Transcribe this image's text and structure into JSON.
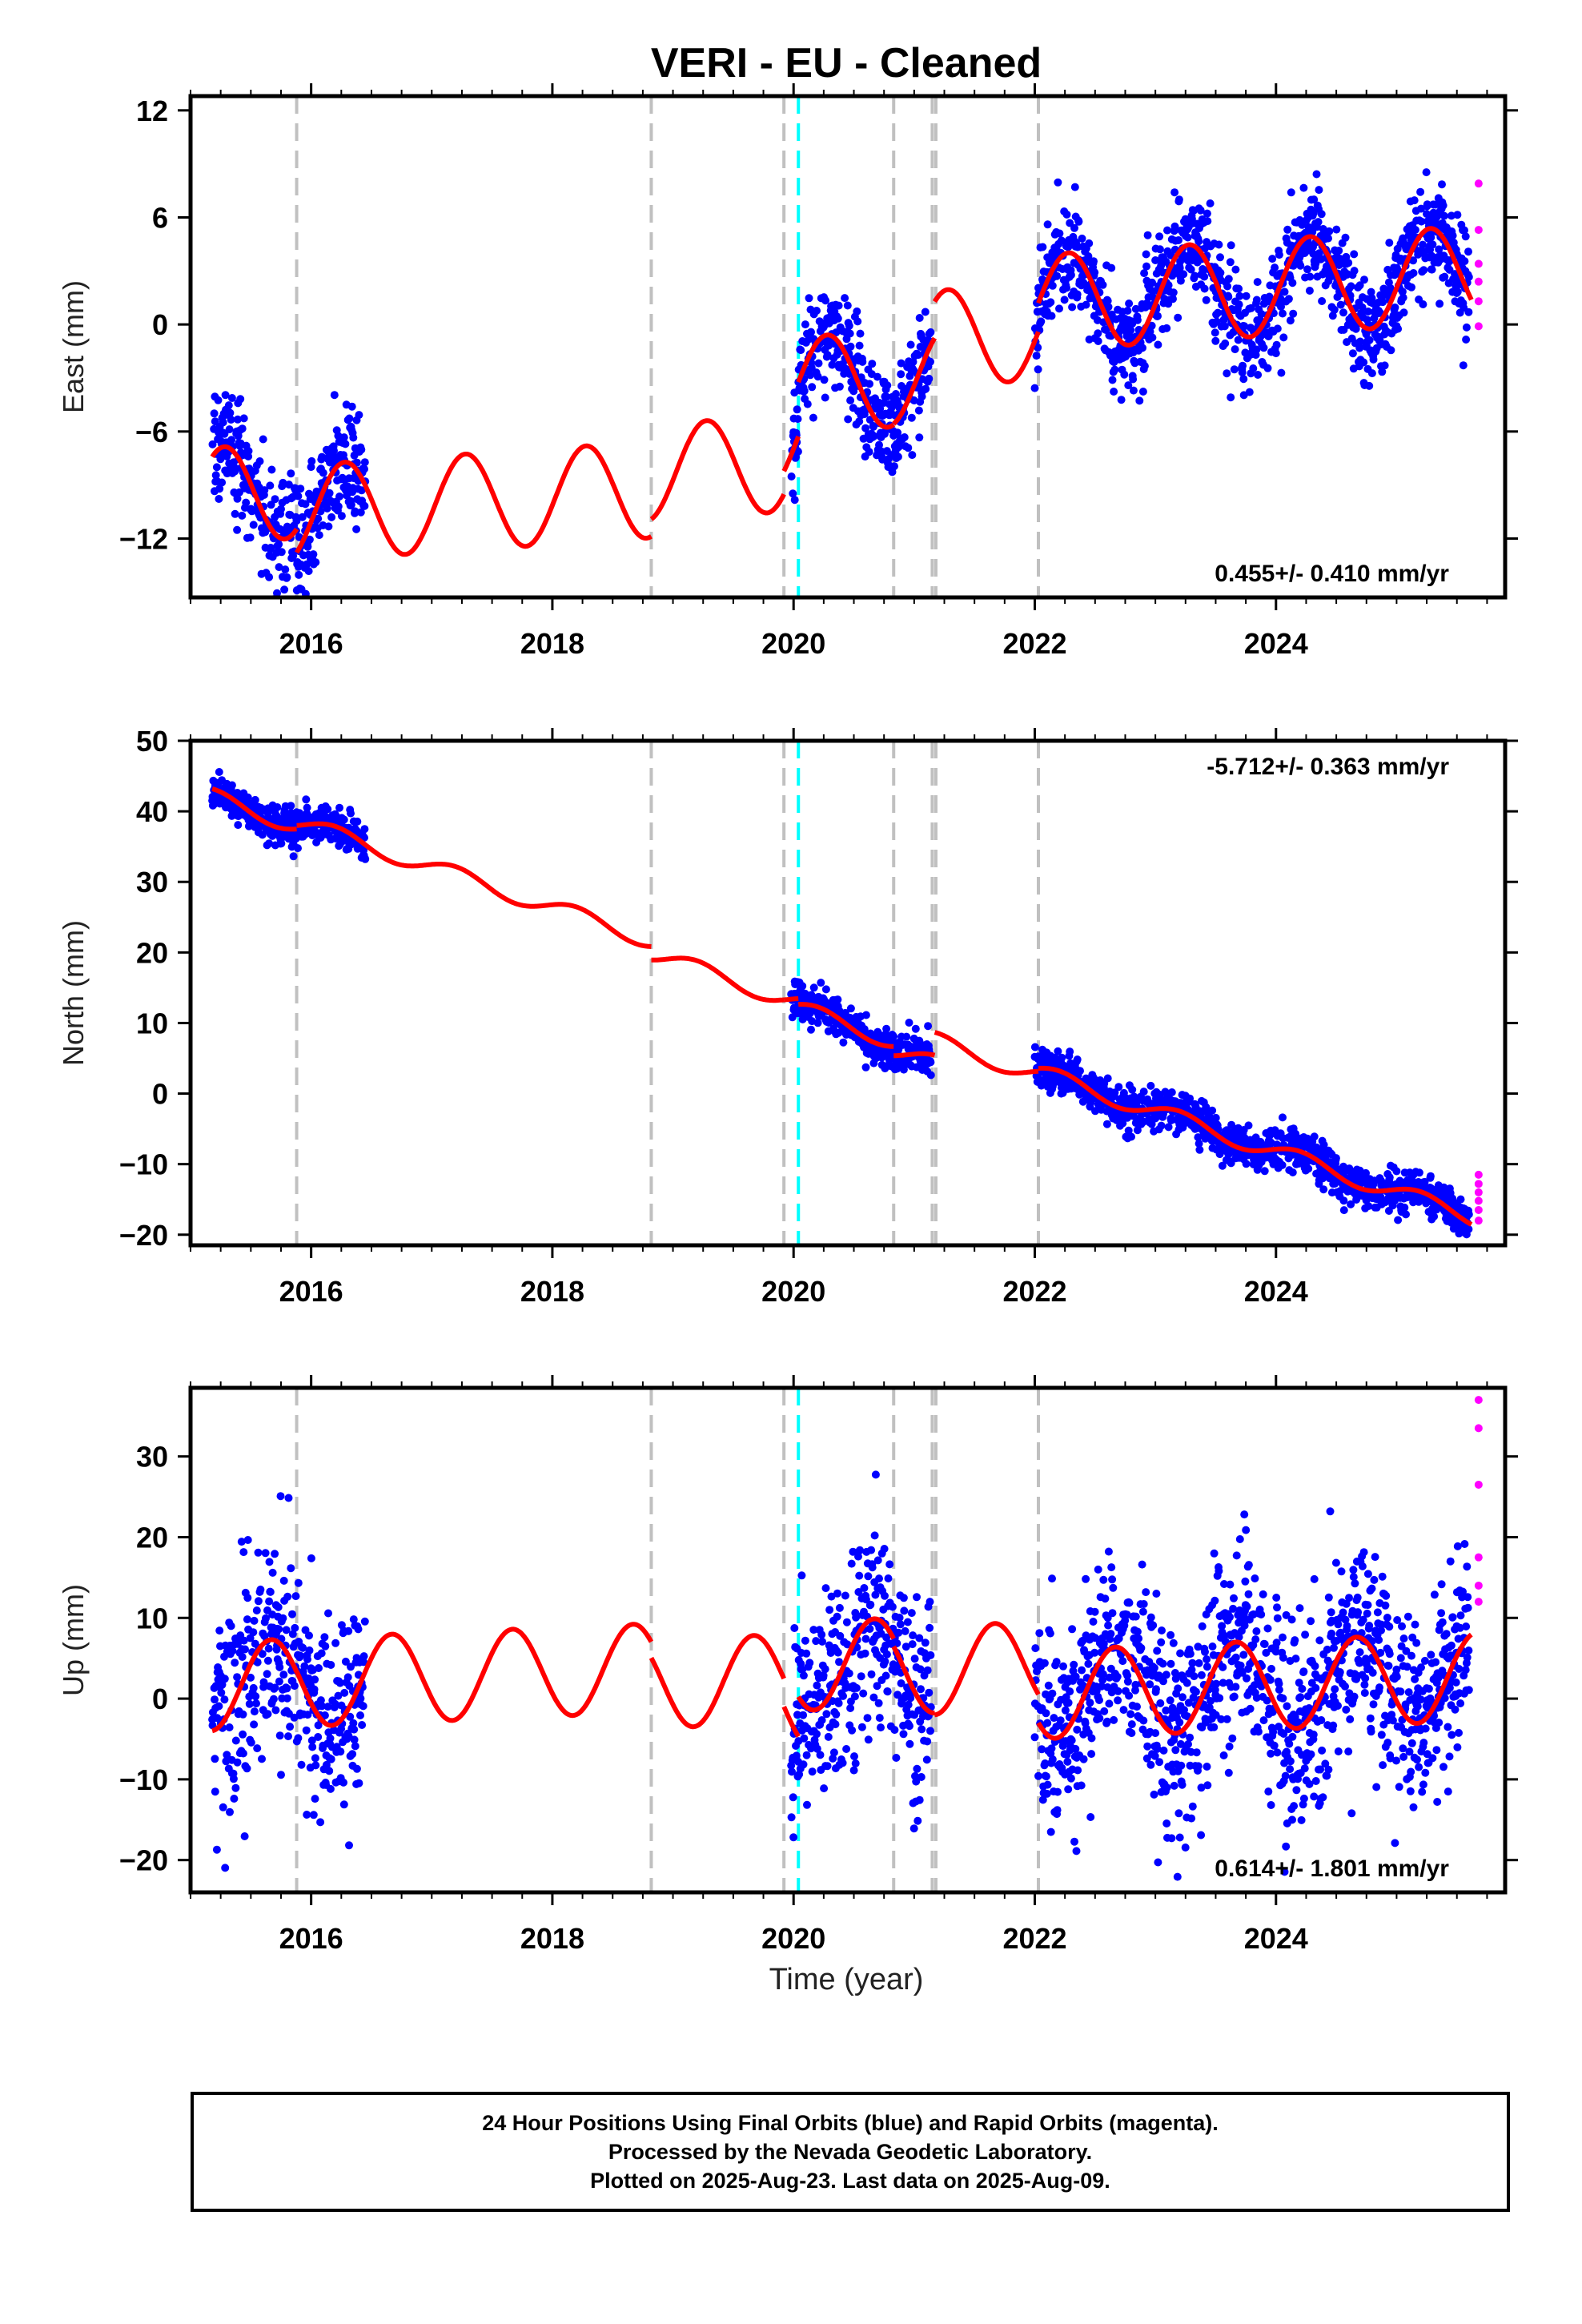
{
  "title": "VERI  - EU - Cleaned",
  "xlabel": "Time (year)",
  "footer": {
    "line1": "24 Hour Positions Using Final Orbits (blue) and Rapid Orbits (magenta).",
    "line2": "Processed by the Nevada Geodetic Laboratory.",
    "line3": "Plotted on 2025-Aug-23. Last data on 2025-Aug-09."
  },
  "colors": {
    "final_orbits": "#0000ff",
    "rapid_orbits": "#ff00ff",
    "model": "#ff0000",
    "event_line": "#c0c0c0",
    "highlight_event_line": "#00ffff"
  },
  "chart_data": [
    {
      "type": "scatter",
      "panel": "east",
      "ylabel": "East (mm)",
      "rate_label": "0.455+/- 0.410 mm/yr",
      "rate_label_position": "bottom-right",
      "xlim": [
        2015.0,
        2025.9
      ],
      "ylim": [
        -15.3,
        12.8
      ],
      "xticks": [
        2016,
        2018,
        2020,
        2022,
        2024
      ],
      "xtick_labels": [
        "2016",
        "2018",
        "2020",
        "2022",
        "2024"
      ],
      "yticks": [
        12,
        6,
        0,
        -6,
        -12
      ],
      "ytick_labels": [
        "12",
        "6",
        "0",
        "−6",
        "−12"
      ],
      "model": {
        "amplitude": 2.7,
        "phase": 0.03,
        "segments": [
          {
            "from": 2015.18,
            "to": 2015.88,
            "base": -9.6,
            "slope": 0.455,
            "t0": 2015.18
          },
          {
            "from": 2015.88,
            "to": 2018.82,
            "base": -10.6,
            "slope": 0.455,
            "t0": 2015.88
          },
          {
            "from": 2018.82,
            "to": 2019.92,
            "base": -8.3,
            "slope": 0.455,
            "t0": 2018.82
          },
          {
            "from": 2019.92,
            "to": 2020.04,
            "base": -6.5,
            "slope": 0.455,
            "t0": 2019.92
          },
          {
            "from": 2020.04,
            "to": 2020.83,
            "base": -3.4,
            "slope": 0.455,
            "t0": 2020.04
          },
          {
            "from": 2020.83,
            "to": 2021.17,
            "base": -3.0,
            "slope": 0.455,
            "t0": 2020.83
          },
          {
            "from": 2021.17,
            "to": 2022.03,
            "base": -0.8,
            "slope": 0.455,
            "t0": 2021.17
          },
          {
            "from": 2022.03,
            "to": 2025.62,
            "base": 1.2,
            "slope": 0.455,
            "t0": 2022.03
          }
        ]
      },
      "data_spans": [
        [
          2015.18,
          2016.45
        ],
        [
          2019.98,
          2021.14
        ],
        [
          2022.0,
          2025.6
        ]
      ],
      "noise": 1.5,
      "rapid_points": [
        7.9,
        5.3,
        3.4,
        2.4,
        1.3,
        -0.1
      ]
    },
    {
      "type": "scatter",
      "panel": "north",
      "ylabel": "North (mm)",
      "rate_label": "-5.712+/- 0.363 mm/yr",
      "rate_label_position": "top-right",
      "xlim": [
        2015.0,
        2025.9
      ],
      "ylim": [
        -21.5,
        50.0
      ],
      "xticks": [
        2016,
        2018,
        2020,
        2022,
        2024
      ],
      "xtick_labels": [
        "2016",
        "2018",
        "2020",
        "2022",
        "2024"
      ],
      "yticks": [
        50,
        40,
        30,
        20,
        10,
        0,
        -10,
        -20
      ],
      "ytick_labels": [
        "50",
        "40",
        "30",
        "20",
        "10",
        "0",
        "−10",
        "−20"
      ],
      "model": {
        "amplitude": 1.2,
        "phase": 0.95,
        "segments": [
          {
            "from": 2015.18,
            "to": 2015.88,
            "base": 42.0,
            "slope": -5.712,
            "t0": 2015.18
          },
          {
            "from": 2015.88,
            "to": 2018.82,
            "base": 38.5,
            "slope": -5.712,
            "t0": 2015.88
          },
          {
            "from": 2018.82,
            "to": 2019.92,
            "base": 19.8,
            "slope": -5.712,
            "t0": 2018.82
          },
          {
            "from": 2019.92,
            "to": 2020.04,
            "base": 13.5,
            "slope": -5.712,
            "t0": 2019.92
          },
          {
            "from": 2020.04,
            "to": 2020.83,
            "base": 12.0,
            "slope": -5.712,
            "t0": 2020.04
          },
          {
            "from": 2020.83,
            "to": 2021.17,
            "base": 6.2,
            "slope": -5.712,
            "t0": 2020.83
          },
          {
            "from": 2021.17,
            "to": 2022.03,
            "base": 7.5,
            "slope": -5.712,
            "t0": 2021.17
          },
          {
            "from": 2022.03,
            "to": 2025.62,
            "base": 3.0,
            "slope": -5.712,
            "t0": 2022.03
          }
        ]
      },
      "data_spans": [
        [
          2015.18,
          2016.45
        ],
        [
          2019.98,
          2021.14
        ],
        [
          2022.0,
          2025.6
        ]
      ],
      "noise": 1.4,
      "rapid_points": [
        -11.5,
        -12.8,
        -14.0,
        -15.2,
        -16.5,
        -18.0
      ]
    },
    {
      "type": "scatter",
      "panel": "up",
      "ylabel": "Up (mm)",
      "rate_label": "0.614+/- 1.801 mm/yr",
      "rate_label_position": "bottom-right",
      "xlim": [
        2015.0,
        2025.9
      ],
      "ylim": [
        -24.0,
        38.5
      ],
      "xticks": [
        2016,
        2018,
        2020,
        2022,
        2024
      ],
      "xtick_labels": [
        "2016",
        "2018",
        "2020",
        "2022",
        "2024"
      ],
      "yticks": [
        30,
        20,
        10,
        0,
        -10,
        -20
      ],
      "ytick_labels": [
        "30",
        "20",
        "10",
        "0",
        "−10",
        "−20"
      ],
      "model": {
        "amplitude": 5.5,
        "phase": 0.42,
        "segments": [
          {
            "from": 2015.18,
            "to": 2015.88,
            "base": 1.5,
            "slope": 0.614,
            "t0": 2015.18
          },
          {
            "from": 2015.88,
            "to": 2018.82,
            "base": 2.0,
            "slope": 0.614,
            "t0": 2015.88
          },
          {
            "from": 2018.82,
            "to": 2019.92,
            "base": 1.8,
            "slope": 0.614,
            "t0": 2018.82
          },
          {
            "from": 2019.92,
            "to": 2020.04,
            "base": -1.0,
            "slope": 0.614,
            "t0": 2019.92
          },
          {
            "from": 2020.04,
            "to": 2020.83,
            "base": 4.0,
            "slope": 0.614,
            "t0": 2020.04
          },
          {
            "from": 2020.83,
            "to": 2021.17,
            "base": 3.5,
            "slope": 0.614,
            "t0": 2020.83
          },
          {
            "from": 2021.17,
            "to": 2022.03,
            "base": 3.5,
            "slope": 0.614,
            "t0": 2021.17
          },
          {
            "from": 2022.03,
            "to": 2025.62,
            "base": 0.5,
            "slope": 0.614,
            "t0": 2022.03
          }
        ]
      },
      "data_spans": [
        [
          2015.18,
          2016.45
        ],
        [
          2019.98,
          2021.14
        ],
        [
          2022.0,
          2025.6
        ]
      ],
      "noise": 6.5,
      "rapid_points": [
        37.0,
        33.5,
        26.5,
        17.5,
        14.0,
        12.0
      ]
    }
  ],
  "events": [
    2015.88,
    2018.82,
    2019.92,
    2020.83,
    2021.15,
    2021.18,
    2022.03
  ],
  "highlight_event": 2020.04
}
